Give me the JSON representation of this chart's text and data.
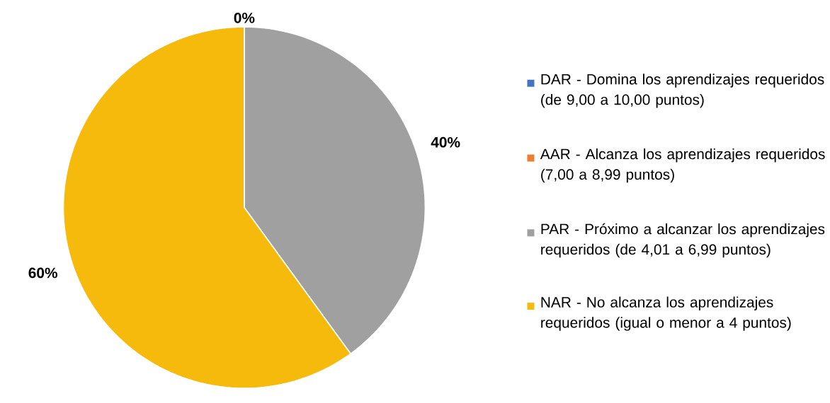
{
  "chart_data": {
    "type": "pie",
    "categories": [
      "DAR - Domina los aprendizajes requeridos (de 9,00 a 10,00 puntos)",
      "AAR - Alcanza los aprendizajes requeridos (7,00 a 8,99 puntos)",
      "PAR - Próximo a alcanzar los aprendizajes requeridos (de 4,01 a 6,99 puntos)",
      "NAR - No alcanza los aprendizajes requeridos (igual o menor a 4 puntos)"
    ],
    "values": [
      0,
      0,
      40,
      60
    ],
    "colors": [
      "#4472c4",
      "#ed7d31",
      "#a0a0a0",
      "#f5ba0c"
    ],
    "value_labels": [
      "0%",
      null,
      "40%",
      "60%"
    ],
    "legend": "right"
  }
}
